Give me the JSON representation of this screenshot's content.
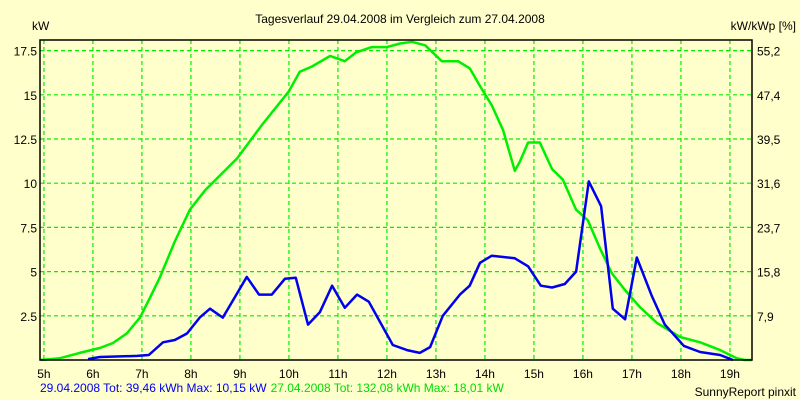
{
  "chart_data": {
    "type": "line",
    "title": "Tagesverlauf 29.04.2008 im Vergleich zum 27.04.2008",
    "ylabel": "kW",
    "ylabel_right": "kW/kWp [%]",
    "xlim": [
      4.92,
      19.45
    ],
    "ylim": [
      0,
      18.1
    ],
    "grid": true,
    "x_ticks": [
      {
        "value": 5,
        "label": "5h"
      },
      {
        "value": 6,
        "label": "6h"
      },
      {
        "value": 7,
        "label": "7h"
      },
      {
        "value": 8,
        "label": "8h"
      },
      {
        "value": 9,
        "label": "9h"
      },
      {
        "value": 10,
        "label": "10h"
      },
      {
        "value": 11,
        "label": "11h"
      },
      {
        "value": 12,
        "label": "12h"
      },
      {
        "value": 13,
        "label": "13h"
      },
      {
        "value": 14,
        "label": "14h"
      },
      {
        "value": 15,
        "label": "15h"
      },
      {
        "value": 16,
        "label": "16h"
      },
      {
        "value": 17,
        "label": "17h"
      },
      {
        "value": 18,
        "label": "18h"
      },
      {
        "value": 19,
        "label": "19h"
      }
    ],
    "y_ticks": [
      {
        "value": 2.5,
        "label": "2.5",
        "right": "7,9"
      },
      {
        "value": 5,
        "label": "5",
        "right": "15,8"
      },
      {
        "value": 7.5,
        "label": "7.5",
        "right": "23,7"
      },
      {
        "value": 10,
        "label": "10",
        "right": "31,6"
      },
      {
        "value": 12.5,
        "label": "12.5",
        "right": "39,5"
      },
      {
        "value": 15,
        "label": "15",
        "right": "47,4"
      },
      {
        "value": 17.5,
        "label": "17.5",
        "right": "55,2"
      }
    ],
    "series": [
      {
        "name": "29.04.2008",
        "color": "#0000ee",
        "points": [
          [
            5.9,
            0.05
          ],
          [
            6.14,
            0.17
          ],
          [
            6.9,
            0.23
          ],
          [
            7.14,
            0.28
          ],
          [
            7.43,
            1.0
          ],
          [
            7.67,
            1.13
          ],
          [
            7.92,
            1.5
          ],
          [
            8.18,
            2.4
          ],
          [
            8.39,
            2.9
          ],
          [
            8.65,
            2.4
          ],
          [
            9.14,
            4.7
          ],
          [
            9.39,
            3.7
          ],
          [
            9.65,
            3.7
          ],
          [
            9.92,
            4.6
          ],
          [
            10.14,
            4.65
          ],
          [
            10.39,
            2.0
          ],
          [
            10.63,
            2.7
          ],
          [
            10.88,
            4.2
          ],
          [
            11.14,
            2.95
          ],
          [
            11.39,
            3.7
          ],
          [
            11.63,
            3.3
          ],
          [
            12.12,
            0.85
          ],
          [
            12.41,
            0.56
          ],
          [
            12.67,
            0.4
          ],
          [
            12.88,
            0.73
          ],
          [
            13.14,
            2.5
          ],
          [
            13.49,
            3.7
          ],
          [
            13.69,
            4.2
          ],
          [
            13.9,
            5.5
          ],
          [
            14.14,
            5.9
          ],
          [
            14.61,
            5.75
          ],
          [
            14.88,
            5.3
          ],
          [
            15.14,
            4.2
          ],
          [
            15.37,
            4.1
          ],
          [
            15.63,
            4.3
          ],
          [
            15.86,
            5.0
          ],
          [
            16.12,
            10.1
          ],
          [
            16.37,
            8.7
          ],
          [
            16.61,
            2.9
          ],
          [
            16.86,
            2.3
          ],
          [
            17.1,
            5.8
          ],
          [
            17.41,
            3.6
          ],
          [
            17.67,
            2.0
          ],
          [
            18.06,
            0.8
          ],
          [
            18.39,
            0.45
          ],
          [
            18.8,
            0.28
          ],
          [
            19.06,
            0.0
          ]
        ]
      },
      {
        "name": "27.04.2008",
        "color": "#00ee00",
        "points": [
          [
            4.93,
            0
          ],
          [
            5.33,
            0.1
          ],
          [
            5.73,
            0.4
          ],
          [
            6.14,
            0.68
          ],
          [
            6.41,
            0.96
          ],
          [
            6.69,
            1.5
          ],
          [
            6.96,
            2.4
          ],
          [
            7.16,
            3.5
          ],
          [
            7.37,
            4.7
          ],
          [
            7.67,
            6.7
          ],
          [
            7.98,
            8.5
          ],
          [
            8.29,
            9.6
          ],
          [
            8.94,
            11.4
          ],
          [
            9.45,
            13.3
          ],
          [
            10.0,
            15.2
          ],
          [
            10.22,
            16.3
          ],
          [
            10.47,
            16.6
          ],
          [
            10.84,
            17.2
          ],
          [
            11.14,
            16.9
          ],
          [
            11.37,
            17.4
          ],
          [
            11.69,
            17.7
          ],
          [
            12.0,
            17.7
          ],
          [
            12.27,
            17.9
          ],
          [
            12.51,
            18.0
          ],
          [
            12.78,
            17.8
          ],
          [
            13.12,
            16.9
          ],
          [
            13.45,
            16.9
          ],
          [
            13.69,
            16.5
          ],
          [
            13.9,
            15.5
          ],
          [
            14.14,
            14.4
          ],
          [
            14.37,
            13.0
          ],
          [
            14.61,
            10.7
          ],
          [
            14.71,
            11.2
          ],
          [
            14.88,
            12.3
          ],
          [
            15.12,
            12.3
          ],
          [
            15.37,
            10.8
          ],
          [
            15.59,
            10.2
          ],
          [
            15.86,
            8.5
          ],
          [
            16.1,
            7.9
          ],
          [
            16.35,
            6.3
          ],
          [
            16.59,
            4.9
          ],
          [
            16.86,
            3.95
          ],
          [
            17.16,
            3.0
          ],
          [
            17.51,
            2.1
          ],
          [
            17.98,
            1.3
          ],
          [
            18.39,
            1.0
          ],
          [
            18.8,
            0.56
          ],
          [
            19.14,
            0.1
          ],
          [
            19.3,
            0
          ],
          [
            19.45,
            0
          ]
        ]
      }
    ],
    "legend": {
      "placement": "bottom-left",
      "blue_text": "29.04.2008 Tot: 39,46 kWh Max: 10,15 kW",
      "green_text": "27.04.2008 Tot: 132,08 kWh Max: 18,01 kW"
    },
    "credit": "SunnyReport pinxit"
  }
}
